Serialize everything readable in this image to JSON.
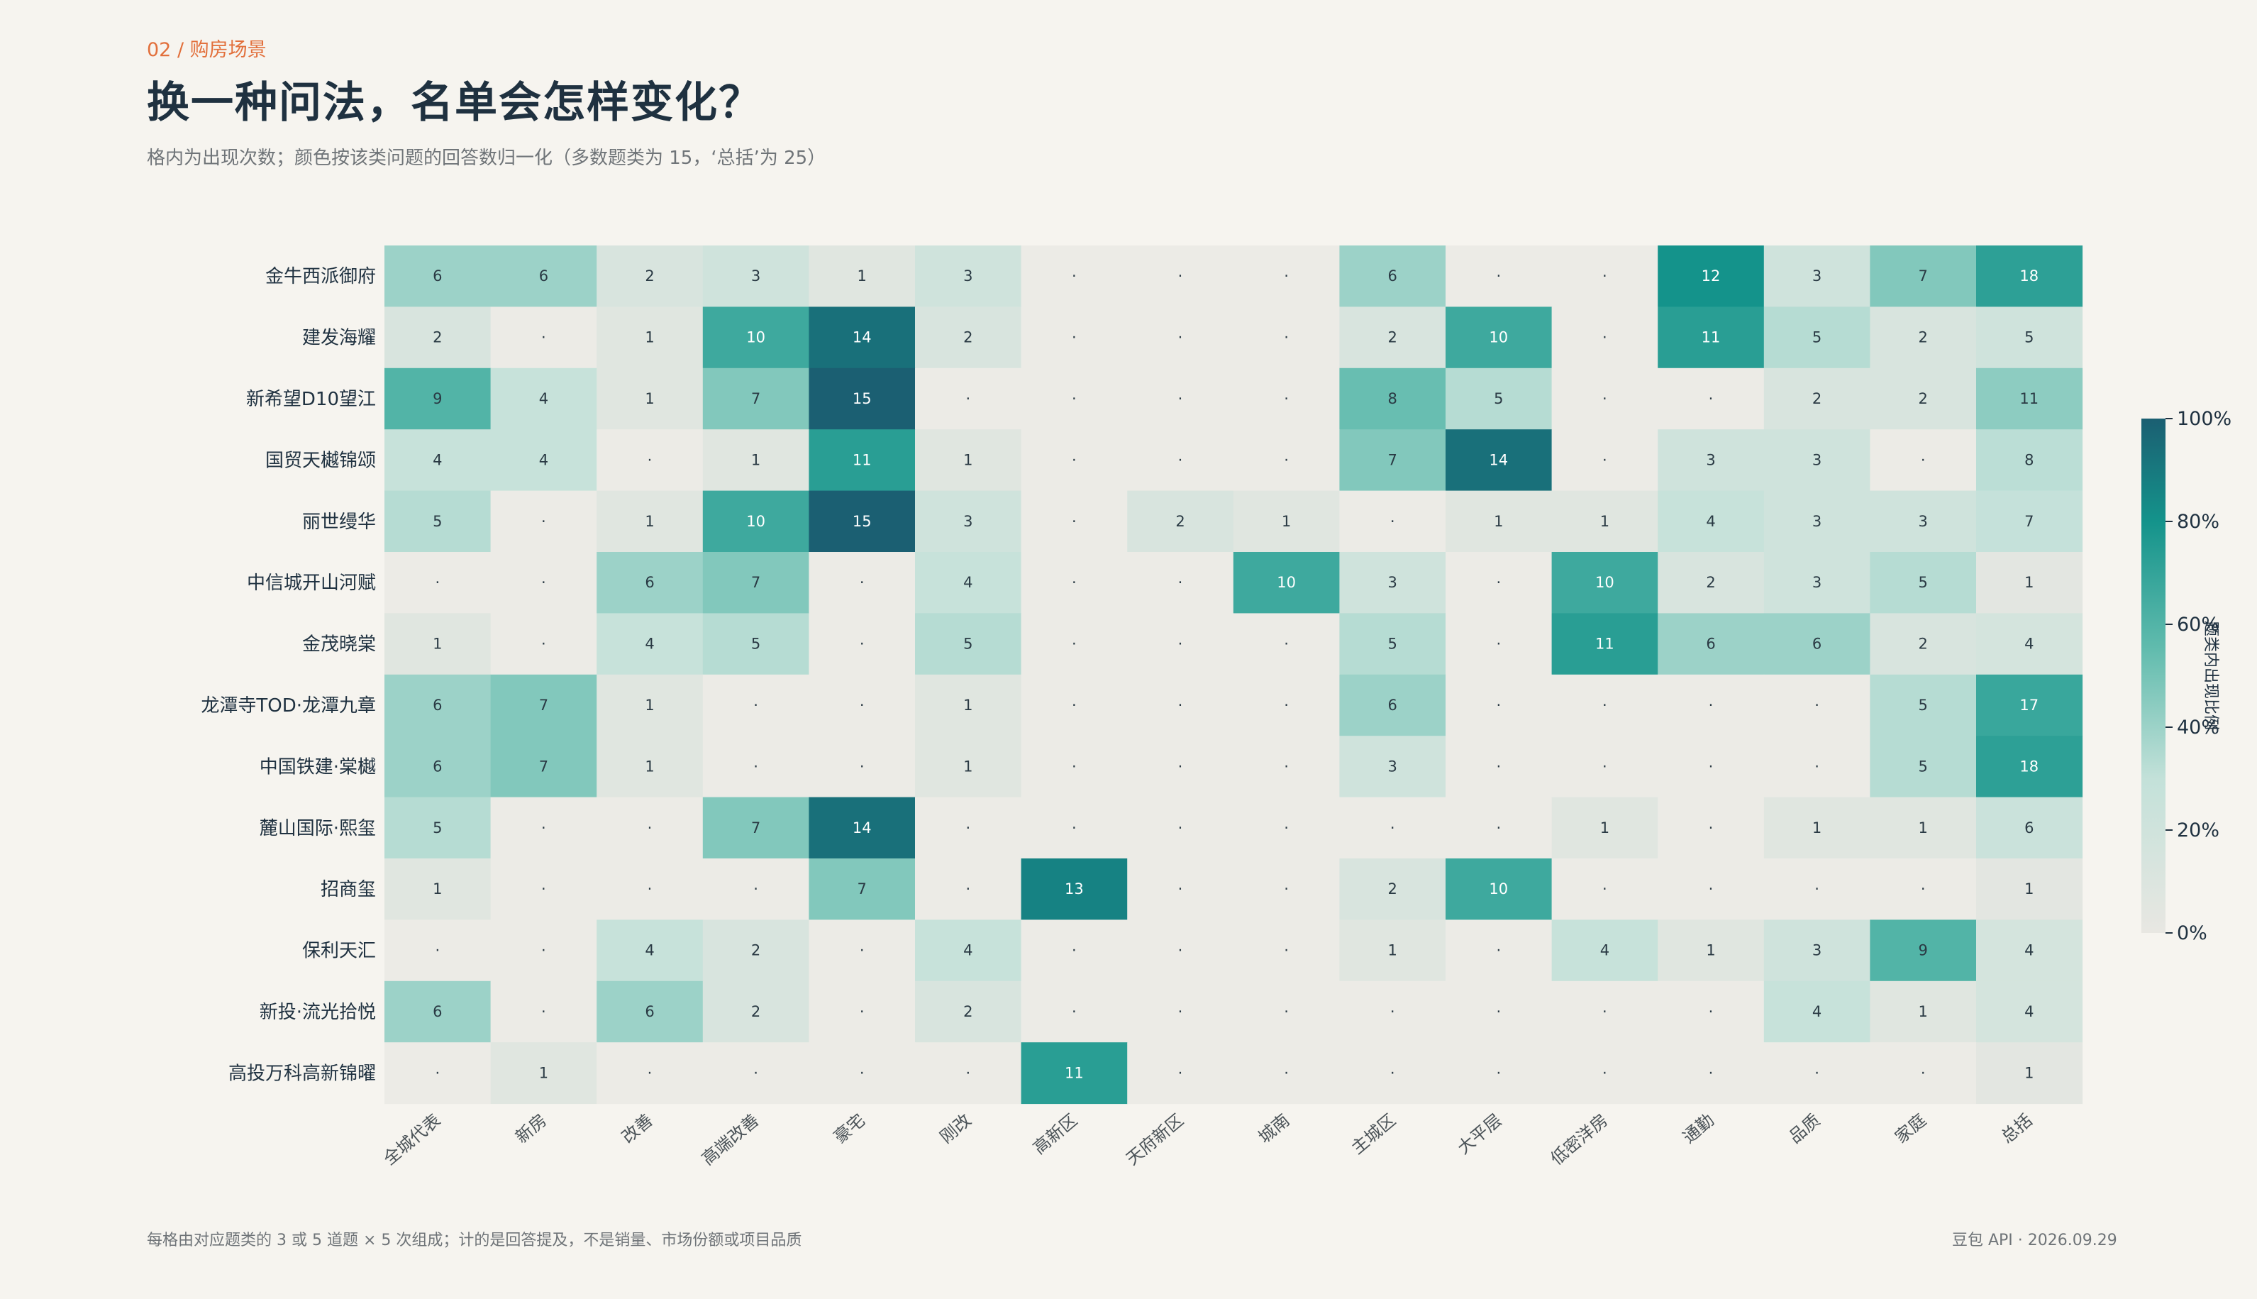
{
  "header": {
    "kicker": "02 / 购房场景",
    "title": "换一种问法，名单会怎样变化？",
    "subtitle": "格内为出现次数；颜色按该类问题的回答数归一化（多数题类为 15，‘总括’为 25）"
  },
  "footer": {
    "note": "每格由对应题类的 3 或 5 道题 × 5 次组成；计的是回答提及，不是销量、市场份额或项目品质",
    "source": "豆包 API · 2026.09.29"
  },
  "colors": {
    "background": "#f6f4ef",
    "empty_cell": "#ecebe6",
    "scale_low": "#e8e7e2",
    "scale_mid": "#62bcae",
    "scale_high_mid": "#14938b",
    "scale_high": "#1b5f72",
    "kicker": "#e2703c",
    "title": "#1f3140"
  },
  "chart_data": {
    "type": "heatmap",
    "rows": [
      "金牛西派御府",
      "建发海耀",
      "新希望D10望江",
      "国贸天樾锦颂",
      "丽世缦华",
      "中信城开山河赋",
      "金茂晓棠",
      "龙潭寺TOD·龙潭九章",
      "中国铁建·棠樾",
      "麓山国际·熙玺",
      "招商玺",
      "保利天汇",
      "新投·流光拾悦",
      "高投万科高新锦曜"
    ],
    "columns": [
      "全城代表",
      "新房",
      "改善",
      "高端改善",
      "豪宅",
      "刚改",
      "高新区",
      "天府新区",
      "城南",
      "主城区",
      "大平层",
      "低密洋房",
      "通勤",
      "品质",
      "家庭",
      "总括"
    ],
    "denominators": [
      15,
      15,
      15,
      15,
      15,
      15,
      15,
      15,
      15,
      15,
      15,
      15,
      15,
      15,
      15,
      25
    ],
    "values": [
      [
        6,
        6,
        2,
        3,
        1,
        3,
        null,
        null,
        null,
        6,
        null,
        null,
        12,
        3,
        7,
        18
      ],
      [
        2,
        null,
        1,
        10,
        14,
        2,
        null,
        null,
        null,
        2,
        10,
        null,
        11,
        5,
        2,
        5
      ],
      [
        9,
        4,
        1,
        7,
        15,
        null,
        null,
        null,
        null,
        8,
        5,
        null,
        null,
        2,
        2,
        11
      ],
      [
        4,
        4,
        null,
        1,
        11,
        1,
        null,
        null,
        null,
        7,
        14,
        null,
        3,
        3,
        null,
        8
      ],
      [
        5,
        null,
        1,
        10,
        15,
        3,
        null,
        2,
        1,
        null,
        1,
        1,
        4,
        3,
        3,
        7
      ],
      [
        null,
        null,
        6,
        7,
        null,
        4,
        null,
        null,
        10,
        3,
        null,
        10,
        2,
        3,
        5,
        1
      ],
      [
        1,
        null,
        4,
        5,
        null,
        5,
        null,
        null,
        null,
        5,
        null,
        11,
        6,
        6,
        2,
        4
      ],
      [
        6,
        7,
        1,
        null,
        null,
        1,
        null,
        null,
        null,
        6,
        null,
        null,
        null,
        null,
        5,
        17
      ],
      [
        6,
        7,
        1,
        null,
        null,
        1,
        null,
        null,
        null,
        3,
        null,
        null,
        null,
        null,
        5,
        18
      ],
      [
        5,
        null,
        null,
        7,
        14,
        null,
        null,
        null,
        null,
        null,
        null,
        1,
        null,
        1,
        1,
        6
      ],
      [
        1,
        null,
        null,
        null,
        7,
        null,
        13,
        null,
        null,
        2,
        10,
        null,
        null,
        null,
        null,
        1
      ],
      [
        null,
        null,
        4,
        2,
        null,
        4,
        null,
        null,
        null,
        1,
        null,
        4,
        1,
        3,
        9,
        4
      ],
      [
        6,
        null,
        6,
        2,
        null,
        2,
        null,
        null,
        null,
        null,
        null,
        null,
        null,
        4,
        1,
        4
      ],
      [
        null,
        1,
        null,
        null,
        null,
        null,
        11,
        null,
        null,
        null,
        null,
        null,
        null,
        null,
        null,
        1
      ]
    ],
    "empty_marker": "·",
    "colorbar": {
      "label": "题类内出现比例",
      "ticks": [
        "0%",
        "20%",
        "40%",
        "60%",
        "80%",
        "100%"
      ],
      "range": [
        0,
        1
      ]
    }
  }
}
